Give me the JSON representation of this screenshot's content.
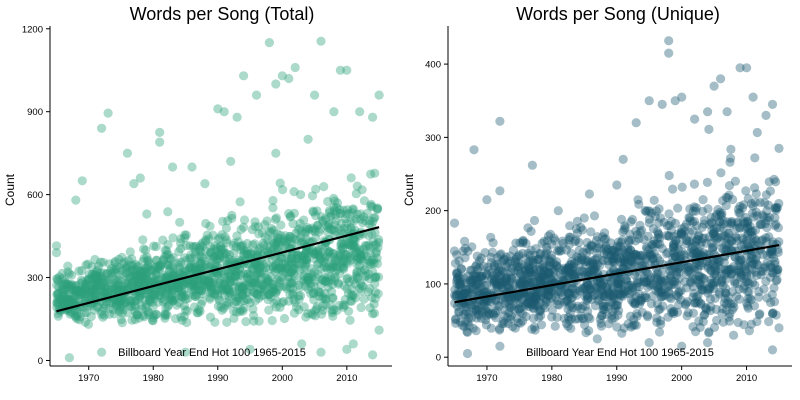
{
  "chart_data": [
    {
      "type": "scatter",
      "title": "Words per Song (Total)",
      "xlabel": "",
      "ylabel": "Count",
      "annotation": "Billboard Year End Hot 100 1965-2015",
      "xlim": [
        1964,
        2017
      ],
      "ylim": [
        -20,
        1210
      ],
      "x_ticks": [
        1970,
        1980,
        1990,
        2000,
        2010
      ],
      "y_ticks": [
        0,
        300,
        600,
        900,
        1200
      ],
      "x_tick_labels": [
        "1970",
        "1980",
        "1990",
        "2000",
        "2010"
      ],
      "y_tick_labels": [
        "0",
        "300",
        "600",
        "900",
        "1200"
      ],
      "point_color": "#2ca07a",
      "point_opacity": 0.4,
      "grid": false,
      "trend_line": {
        "x": [
          1965,
          2015
        ],
        "y": [
          178,
          482
        ],
        "color": "#000000"
      },
      "bulk_band": {
        "start": [
          140,
          310
        ],
        "end": [
          180,
          620
        ]
      },
      "outliers": [
        [
          1965,
          415
        ],
        [
          1965,
          390
        ],
        [
          1967,
          10
        ],
        [
          1968,
          580
        ],
        [
          1969,
          650
        ],
        [
          1972,
          840
        ],
        [
          1973,
          895
        ],
        [
          1976,
          750
        ],
        [
          1977,
          640
        ],
        [
          1978,
          660
        ],
        [
          1979,
          530
        ],
        [
          1981,
          825
        ],
        [
          1981,
          790
        ],
        [
          1983,
          700
        ],
        [
          1986,
          700
        ],
        [
          1988,
          640
        ],
        [
          1990,
          910
        ],
        [
          1991,
          900
        ],
        [
          1993,
          880
        ],
        [
          1994,
          1030
        ],
        [
          1996,
          960
        ],
        [
          1998,
          1150
        ],
        [
          1999,
          1000
        ],
        [
          2000,
          1030
        ],
        [
          2001,
          1020
        ],
        [
          2002,
          1060
        ],
        [
          2005,
          960
        ],
        [
          2006,
          1155
        ],
        [
          2008,
          900
        ],
        [
          2009,
          1050
        ],
        [
          2010,
          1050
        ],
        [
          2012,
          900
        ],
        [
          2015,
          960
        ],
        [
          2014,
          880
        ],
        [
          2003,
          60
        ],
        [
          2010,
          40
        ],
        [
          2014,
          20
        ],
        [
          1972,
          30
        ],
        [
          1995,
          40
        ],
        [
          2006,
          30
        ],
        [
          1985,
          30
        ],
        [
          2011,
          60
        ],
        [
          2015,
          110
        ],
        [
          1999,
          750
        ],
        [
          2004,
          800
        ],
        [
          1992,
          720
        ]
      ]
    },
    {
      "type": "scatter",
      "title": "Words per Song (Unique)",
      "xlabel": "",
      "ylabel": "Count",
      "annotation": "Billboard Year End Hot 100 1965-2015",
      "xlim": [
        1964,
        2017
      ],
      "ylim": [
        -12,
        452
      ],
      "x_ticks": [
        1970,
        1980,
        1990,
        2000,
        2010
      ],
      "y_ticks": [
        0,
        100,
        200,
        300,
        400
      ],
      "x_tick_labels": [
        "1970",
        "1980",
        "1990",
        "2000",
        "2010"
      ],
      "y_tick_labels": [
        "0",
        "100",
        "200",
        "300",
        "400"
      ],
      "point_color": "#1b5a70",
      "point_opacity": 0.4,
      "grid": false,
      "trend_line": {
        "x": [
          1965,
          2015
        ],
        "y": [
          75,
          153
        ],
        "color": "#000000"
      },
      "bulk_band": {
        "start": [
          40,
          130
        ],
        "end": [
          45,
          240
        ]
      },
      "outliers": [
        [
          1965,
          183
        ],
        [
          1965,
          145
        ],
        [
          1967,
          5
        ],
        [
          1968,
          283
        ],
        [
          1970,
          215
        ],
        [
          1972,
          322
        ],
        [
          1972,
          227
        ],
        [
          1977,
          262
        ],
        [
          1981,
          200
        ],
        [
          1985,
          190
        ],
        [
          1990,
          235
        ],
        [
          1991,
          270
        ],
        [
          1993,
          320
        ],
        [
          1995,
          350
        ],
        [
          1997,
          345
        ],
        [
          1998,
          432
        ],
        [
          1998,
          415
        ],
        [
          1999,
          350
        ],
        [
          2000,
          355
        ],
        [
          2002,
          325
        ],
        [
          2004,
          335
        ],
        [
          2005,
          370
        ],
        [
          2006,
          380
        ],
        [
          2007,
          335
        ],
        [
          2009,
          395
        ],
        [
          2010,
          395
        ],
        [
          2011,
          355
        ],
        [
          2013,
          330
        ],
        [
          2014,
          345
        ],
        [
          2015,
          285
        ],
        [
          2000,
          15
        ],
        [
          2004,
          20
        ],
        [
          2014,
          10
        ],
        [
          1995,
          20
        ],
        [
          1972,
          15
        ],
        [
          1987,
          25
        ],
        [
          2015,
          40
        ],
        [
          2008,
          30
        ]
      ]
    }
  ]
}
